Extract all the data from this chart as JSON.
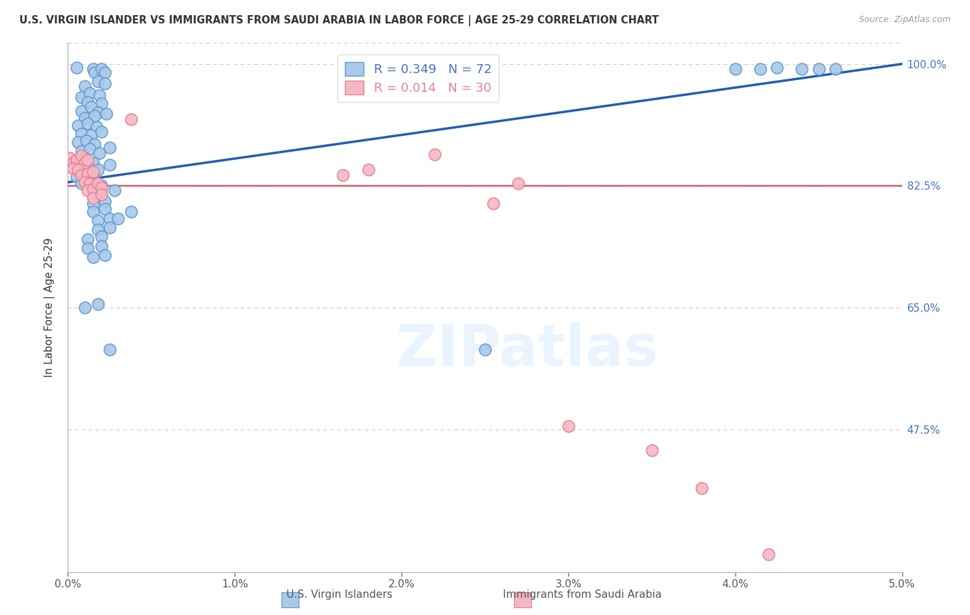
{
  "title": "U.S. VIRGIN ISLANDER VS IMMIGRANTS FROM SAUDI ARABIA IN LABOR FORCE | AGE 25-29 CORRELATION CHART",
  "source": "Source: ZipAtlas.com",
  "ylabel": "In Labor Force | Age 25-29",
  "xlim": [
    0.0,
    0.05
  ],
  "ylim": [
    0.27,
    1.03
  ],
  "yticks": [
    0.475,
    0.65,
    0.825,
    1.0
  ],
  "ytick_labels": [
    "47.5%",
    "65.0%",
    "82.5%",
    "100.0%"
  ],
  "xticks": [
    0.0,
    0.01,
    0.02,
    0.03,
    0.04,
    0.05
  ],
  "xtick_labels": [
    "0.0%",
    "1.0%",
    "2.0%",
    "3.0%",
    "4.0%",
    "5.0%"
  ],
  "blue_R": 0.349,
  "blue_N": 72,
  "pink_R": 0.014,
  "pink_N": 30,
  "blue_color": "#aac8e8",
  "pink_color": "#f4b8c4",
  "blue_edge_color": "#5b9bd5",
  "pink_edge_color": "#e88090",
  "blue_line_color": "#2060b0",
  "pink_line_color": "#d06070",
  "legend_label_blue": "U.S. Virgin Islanders",
  "legend_label_pink": "Immigrants from Saudi Arabia",
  "watermark": "ZIPatlas",
  "background_color": "#ffffff",
  "grid_color": "#cccccc",
  "right_tick_color": "#4472c4",
  "blue_scatter": [
    [
      0.0005,
      0.995
    ],
    [
      0.0015,
      0.993
    ],
    [
      0.0016,
      0.988
    ],
    [
      0.002,
      0.993
    ],
    [
      0.0022,
      0.988
    ],
    [
      0.001,
      0.968
    ],
    [
      0.0018,
      0.975
    ],
    [
      0.0022,
      0.972
    ],
    [
      0.0008,
      0.952
    ],
    [
      0.0013,
      0.958
    ],
    [
      0.0019,
      0.955
    ],
    [
      0.0012,
      0.945
    ],
    [
      0.002,
      0.943
    ],
    [
      0.0008,
      0.932
    ],
    [
      0.0014,
      0.938
    ],
    [
      0.0018,
      0.93
    ],
    [
      0.001,
      0.922
    ],
    [
      0.0016,
      0.925
    ],
    [
      0.0023,
      0.928
    ],
    [
      0.0006,
      0.912
    ],
    [
      0.0012,
      0.915
    ],
    [
      0.0017,
      0.91
    ],
    [
      0.0008,
      0.9
    ],
    [
      0.0014,
      0.898
    ],
    [
      0.002,
      0.903
    ],
    [
      0.0006,
      0.888
    ],
    [
      0.0011,
      0.89
    ],
    [
      0.0016,
      0.885
    ],
    [
      0.0008,
      0.875
    ],
    [
      0.0013,
      0.878
    ],
    [
      0.0019,
      0.872
    ],
    [
      0.0025,
      0.88
    ],
    [
      0.0005,
      0.862
    ],
    [
      0.001,
      0.865
    ],
    [
      0.0015,
      0.858
    ],
    [
      0.0007,
      0.85
    ],
    [
      0.0012,
      0.852
    ],
    [
      0.0018,
      0.848
    ],
    [
      0.0025,
      0.855
    ],
    [
      0.0005,
      0.838
    ],
    [
      0.001,
      0.84
    ],
    [
      0.0015,
      0.835
    ],
    [
      0.0008,
      0.828
    ],
    [
      0.0013,
      0.83
    ],
    [
      0.002,
      0.825
    ],
    [
      0.002,
      0.812
    ],
    [
      0.0028,
      0.818
    ],
    [
      0.0015,
      0.8
    ],
    [
      0.0022,
      0.803
    ],
    [
      0.0015,
      0.788
    ],
    [
      0.0022,
      0.792
    ],
    [
      0.0018,
      0.775
    ],
    [
      0.0025,
      0.778
    ],
    [
      0.0018,
      0.762
    ],
    [
      0.0025,
      0.765
    ],
    [
      0.003,
      0.778
    ],
    [
      0.0038,
      0.788
    ],
    [
      0.0012,
      0.748
    ],
    [
      0.002,
      0.752
    ],
    [
      0.0012,
      0.735
    ],
    [
      0.002,
      0.738
    ],
    [
      0.0015,
      0.722
    ],
    [
      0.0022,
      0.725
    ],
    [
      0.001,
      0.65
    ],
    [
      0.0018,
      0.655
    ],
    [
      0.0025,
      0.59
    ],
    [
      0.04,
      0.993
    ],
    [
      0.0415,
      0.993
    ],
    [
      0.0425,
      0.995
    ],
    [
      0.044,
      0.993
    ],
    [
      0.045,
      0.993
    ],
    [
      0.046,
      0.993
    ],
    [
      0.025,
      0.59
    ]
  ],
  "pink_scatter": [
    [
      0.0001,
      0.865
    ],
    [
      0.0003,
      0.858
    ],
    [
      0.0005,
      0.862
    ],
    [
      0.0008,
      0.868
    ],
    [
      0.001,
      0.858
    ],
    [
      0.0012,
      0.862
    ],
    [
      0.0003,
      0.85
    ],
    [
      0.0006,
      0.848
    ],
    [
      0.0008,
      0.84
    ],
    [
      0.0012,
      0.842
    ],
    [
      0.0015,
      0.845
    ],
    [
      0.001,
      0.83
    ],
    [
      0.0013,
      0.828
    ],
    [
      0.0012,
      0.818
    ],
    [
      0.0015,
      0.82
    ],
    [
      0.0018,
      0.828
    ],
    [
      0.002,
      0.822
    ],
    [
      0.0015,
      0.808
    ],
    [
      0.002,
      0.812
    ],
    [
      0.0038,
      0.92
    ],
    [
      0.0165,
      0.84
    ],
    [
      0.018,
      0.848
    ],
    [
      0.022,
      0.87
    ],
    [
      0.0255,
      0.8
    ],
    [
      0.027,
      0.828
    ],
    [
      0.03,
      0.48
    ],
    [
      0.035,
      0.445
    ],
    [
      0.038,
      0.39
    ],
    [
      0.042,
      0.295
    ]
  ],
  "blue_trendline_x": [
    0.0,
    0.05
  ],
  "blue_trendline_y": [
    0.83,
    1.0
  ],
  "pink_trendline_x": [
    0.0,
    0.05
  ],
  "pink_trendline_y": [
    0.825,
    0.825
  ]
}
